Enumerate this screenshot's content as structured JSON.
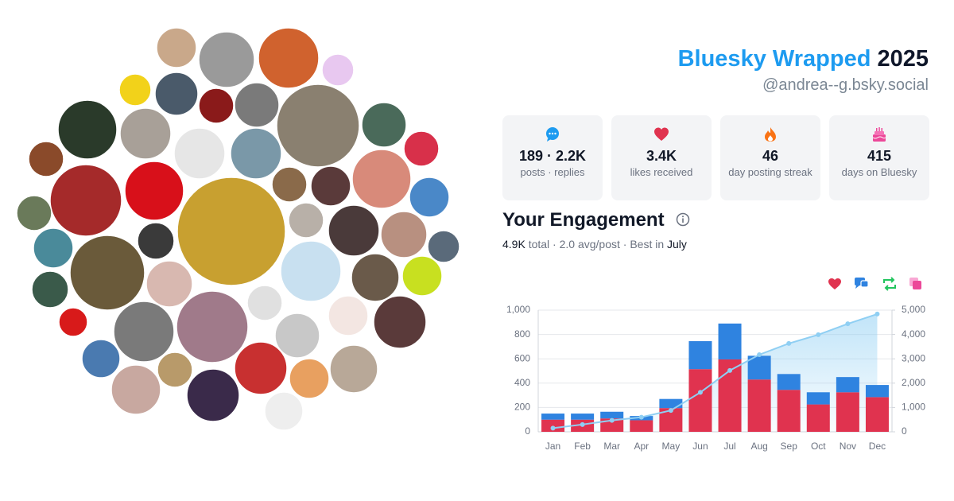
{
  "header": {
    "title": "Bluesky Wrapped",
    "year": "2025",
    "handle": "@andrea--g.bsky.social"
  },
  "stats": [
    {
      "value": "189 · 2.2K",
      "label": "posts · replies"
    },
    {
      "value": "3.4K",
      "label": "likes received"
    },
    {
      "value": "46",
      "label": "day posting streak"
    },
    {
      "value": "415",
      "label": "days on Bluesky"
    }
  ],
  "engagement": {
    "title": "Your Engagement",
    "total": "4.9K",
    "middle": "total · 2.0 avg/post · Best in",
    "best": "July"
  },
  "chart_data": {
    "type": "bar",
    "stacked": true,
    "grid": true,
    "categories": [
      "Jan",
      "Feb",
      "Mar",
      "Apr",
      "May",
      "Jun",
      "Jul",
      "Aug",
      "Sep",
      "Oct",
      "Nov",
      "Dec"
    ],
    "series": [
      {
        "color": "#e0334f",
        "values": [
          100,
          100,
          110,
          95,
          195,
          515,
          595,
          430,
          345,
          225,
          325,
          285
        ]
      },
      {
        "color": "#2f83e0",
        "values": [
          50,
          50,
          55,
          35,
          75,
          230,
          295,
          195,
          130,
          100,
          125,
          100
        ]
      },
      {
        "type": "line",
        "axis": "y2",
        "color": "#8fcff3",
        "values": [
          150,
          300,
          470,
          600,
          880,
          1620,
          2520,
          3170,
          3630,
          3990,
          4440,
          4840
        ]
      }
    ],
    "ylim": [
      0,
      1000
    ],
    "yticks": [
      0,
      200,
      400,
      600,
      800,
      {
        "value": 1000,
        "label": "1,000"
      }
    ],
    "y2lim": [
      0,
      5000
    ],
    "y2ticks": [
      0,
      {
        "value": 1000,
        "label": "1,000"
      },
      {
        "value": 2000,
        "label": "2,000"
      },
      {
        "value": 3000,
        "label": "3,000"
      },
      {
        "value": 4000,
        "label": "4,000"
      },
      {
        "value": 5000,
        "label": "5,000"
      }
    ]
  }
}
